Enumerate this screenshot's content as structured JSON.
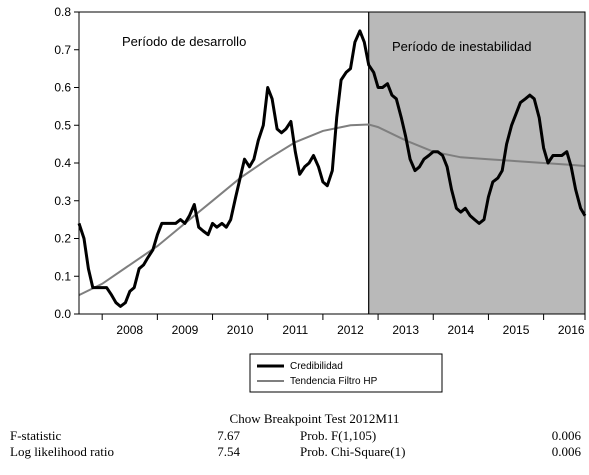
{
  "chart_data": {
    "type": "line",
    "x_start": 2007.58,
    "x_end": 2016.75,
    "ylim": [
      0.0,
      0.8
    ],
    "yticks": [
      "0.0",
      "0.1",
      "0.2",
      "0.3",
      "0.4",
      "0.5",
      "0.6",
      "0.7",
      "0.8"
    ],
    "xticks": [
      "2008",
      "2009",
      "2010",
      "2011",
      "2012",
      "2013",
      "2014",
      "2015",
      "2016"
    ],
    "breakpoint": 2012.83,
    "annotations": [
      "Período de desarrollo",
      "Período de inestabilidad"
    ],
    "shade_color": "#b9b9b9",
    "series": [
      {
        "name": "Credibilidad",
        "color": "#000000",
        "x": [
          2007.58,
          2007.67,
          2007.75,
          2007.83,
          2007.92,
          2008.0,
          2008.08,
          2008.17,
          2008.25,
          2008.33,
          2008.42,
          2008.5,
          2008.58,
          2008.67,
          2008.75,
          2008.83,
          2008.92,
          2009.0,
          2009.08,
          2009.17,
          2009.25,
          2009.33,
          2009.42,
          2009.5,
          2009.58,
          2009.67,
          2009.75,
          2009.83,
          2009.92,
          2010.0,
          2010.08,
          2010.17,
          2010.25,
          2010.33,
          2010.42,
          2010.5,
          2010.58,
          2010.67,
          2010.75,
          2010.83,
          2010.92,
          2011.0,
          2011.08,
          2011.17,
          2011.25,
          2011.33,
          2011.42,
          2011.5,
          2011.58,
          2011.67,
          2011.75,
          2011.83,
          2011.92,
          2012.0,
          2012.08,
          2012.17,
          2012.25,
          2012.33,
          2012.42,
          2012.5,
          2012.58,
          2012.67,
          2012.75,
          2012.83,
          2012.92,
          2013.0,
          2013.08,
          2013.17,
          2013.25,
          2013.33,
          2013.42,
          2013.5,
          2013.58,
          2013.67,
          2013.75,
          2013.83,
          2013.92,
          2014.0,
          2014.08,
          2014.17,
          2014.25,
          2014.33,
          2014.42,
          2014.5,
          2014.58,
          2014.67,
          2014.75,
          2014.83,
          2014.92,
          2015.0,
          2015.08,
          2015.17,
          2015.25,
          2015.33,
          2015.42,
          2015.5,
          2015.58,
          2015.67,
          2015.75,
          2015.83,
          2015.92,
          2016.0,
          2016.08,
          2016.17,
          2016.25,
          2016.33,
          2016.42,
          2016.5,
          2016.58,
          2016.67,
          2016.75
        ],
        "y": [
          0.24,
          0.2,
          0.12,
          0.07,
          0.07,
          0.07,
          0.07,
          0.05,
          0.03,
          0.02,
          0.03,
          0.06,
          0.07,
          0.12,
          0.13,
          0.15,
          0.17,
          0.21,
          0.24,
          0.24,
          0.24,
          0.24,
          0.25,
          0.24,
          0.26,
          0.29,
          0.23,
          0.22,
          0.21,
          0.24,
          0.23,
          0.24,
          0.23,
          0.25,
          0.31,
          0.36,
          0.41,
          0.39,
          0.41,
          0.46,
          0.5,
          0.6,
          0.57,
          0.49,
          0.48,
          0.49,
          0.51,
          0.43,
          0.37,
          0.39,
          0.4,
          0.42,
          0.39,
          0.35,
          0.34,
          0.38,
          0.52,
          0.62,
          0.64,
          0.65,
          0.72,
          0.75,
          0.72,
          0.66,
          0.64,
          0.6,
          0.6,
          0.61,
          0.58,
          0.57,
          0.52,
          0.47,
          0.41,
          0.38,
          0.39,
          0.41,
          0.42,
          0.43,
          0.43,
          0.42,
          0.39,
          0.33,
          0.28,
          0.27,
          0.28,
          0.26,
          0.25,
          0.24,
          0.25,
          0.31,
          0.35,
          0.36,
          0.38,
          0.45,
          0.5,
          0.53,
          0.56,
          0.57,
          0.58,
          0.57,
          0.52,
          0.44,
          0.4,
          0.42,
          0.42,
          0.42,
          0.43,
          0.39,
          0.33,
          0.28,
          0.26
        ]
      },
      {
        "name": "Tendencia Filtro HP",
        "color": "#7f7f7f",
        "x": [
          2007.58,
          2008.0,
          2008.5,
          2009.0,
          2009.5,
          2010.0,
          2010.5,
          2011.0,
          2011.5,
          2012.0,
          2012.5,
          2012.83,
          2013.0,
          2013.5,
          2014.0,
          2014.5,
          2015.0,
          2015.5,
          2016.0,
          2016.5,
          2016.75
        ],
        "y": [
          0.05,
          0.08,
          0.13,
          0.18,
          0.24,
          0.3,
          0.36,
          0.41,
          0.455,
          0.485,
          0.5,
          0.502,
          0.495,
          0.46,
          0.43,
          0.415,
          0.41,
          0.405,
          0.4,
          0.395,
          0.392
        ]
      }
    ]
  },
  "stats": {
    "title": "Chow Breakpoint Test 2012M11",
    "rows": [
      {
        "label": "F-statistic",
        "value": "7.67",
        "prob_label": "Prob. F(1,105)",
        "prob_value": "0.006"
      },
      {
        "label": "Log likelihood ratio",
        "value": "7.54",
        "prob_label": "Prob. Chi-Square(1)",
        "prob_value": "0.006"
      }
    ]
  }
}
